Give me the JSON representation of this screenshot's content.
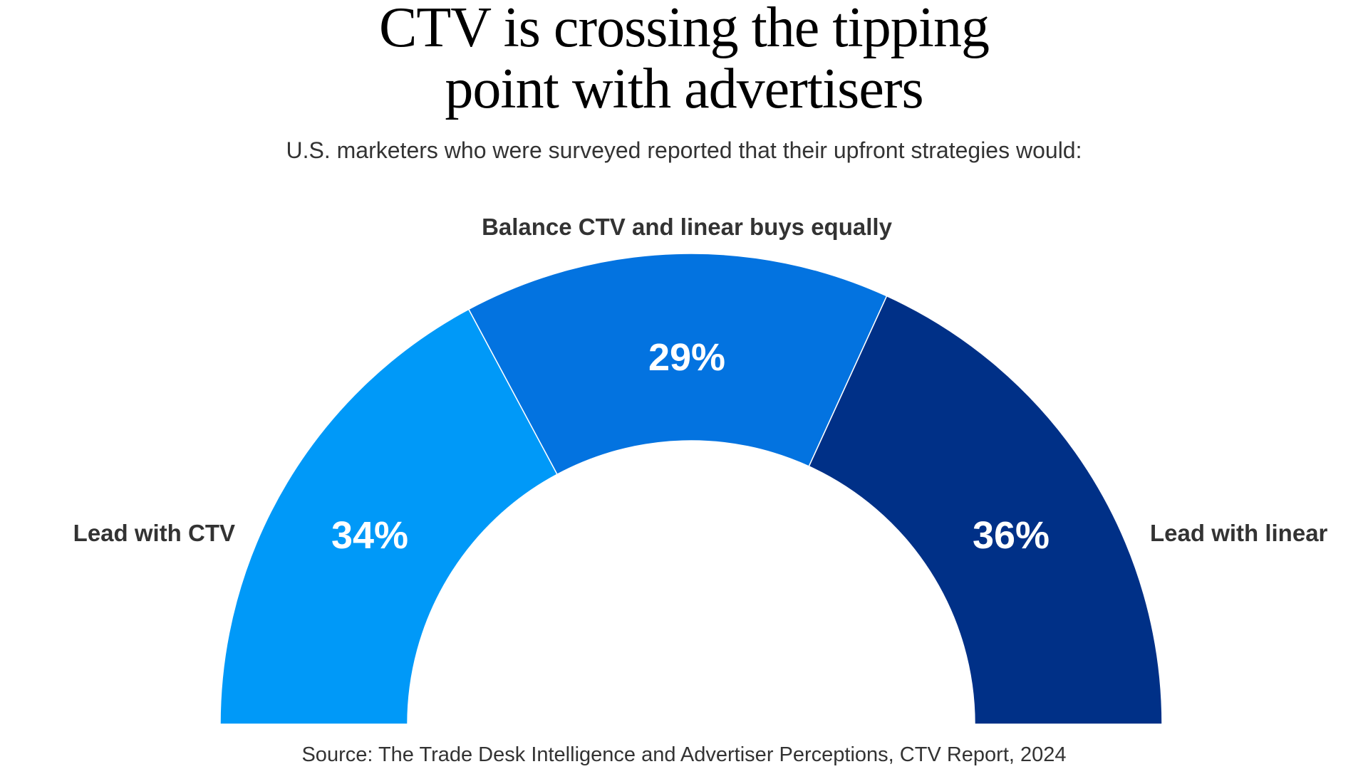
{
  "title_lines": [
    "CTV is crossing the tipping",
    "point with advertisers"
  ],
  "subtitle": "U.S. marketers who were surveyed reported that their upfront strategies would:",
  "source": "Source: The Trade Desk Intelligence and Advertiser Perceptions, CTV Report, 2024",
  "chart_data": {
    "type": "pie",
    "variant": "half-donut",
    "categories": [
      "Lead with CTV",
      "Balance CTV and linear buys equally",
      "Lead with linear"
    ],
    "values": [
      34,
      29,
      36
    ],
    "data_labels": [
      "34%",
      "29%",
      "36%"
    ],
    "colors": [
      "#0099f8",
      "#0373e0",
      "#003087"
    ],
    "legend": "none"
  }
}
